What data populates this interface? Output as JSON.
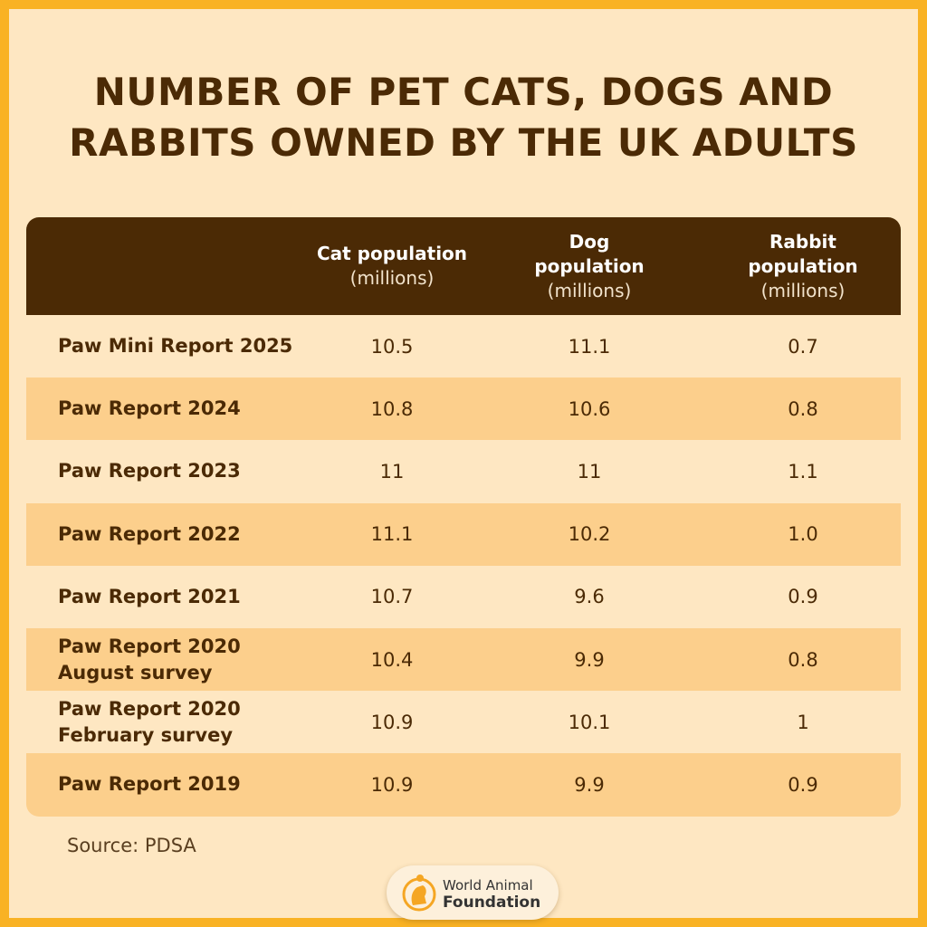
{
  "title": "NUMBER OF PET CATS, DOGS AND RABBITS OWNED BY THE UK ADULTS",
  "colors": {
    "border": "#F9B224",
    "background": "#FEE7C2",
    "header": "#4B2A05",
    "stripe": "#FCCF8C"
  },
  "chart_data": {
    "type": "table",
    "title": "NUMBER OF PET CATS, DOGS AND RABBITS OWNED BY THE UK ADULTS",
    "columns": [
      {
        "name": "Cat population",
        "unit": "(millions)"
      },
      {
        "name": "Dog population",
        "unit": "(millions)"
      },
      {
        "name": "Rabbit population",
        "unit": "(millions)"
      }
    ],
    "rows": [
      {
        "label": [
          "Paw Mini Report 2025"
        ],
        "values": [
          "10.5",
          "11.1",
          "0.7"
        ]
      },
      {
        "label": [
          "Paw Report 2024"
        ],
        "values": [
          "10.8",
          "10.6",
          "0.8"
        ]
      },
      {
        "label": [
          "Paw Report 2023"
        ],
        "values": [
          "11",
          "11",
          "1.1"
        ]
      },
      {
        "label": [
          "Paw Report 2022"
        ],
        "values": [
          "11.1",
          "10.2",
          "1.0"
        ]
      },
      {
        "label": [
          "Paw Report 2021"
        ],
        "values": [
          "10.7",
          "9.6",
          "0.9"
        ]
      },
      {
        "label": [
          "Paw Report 2020",
          "August survey"
        ],
        "values": [
          "10.4",
          "9.9",
          "0.8"
        ]
      },
      {
        "label": [
          "Paw Report 2020",
          "February survey"
        ],
        "values": [
          "10.9",
          "10.1",
          "1"
        ]
      },
      {
        "label": [
          "Paw Report 2019"
        ],
        "values": [
          "10.9",
          "9.9",
          "0.9"
        ]
      }
    ]
  },
  "source": "Source: PDSA",
  "logo": {
    "line1": "World Animal",
    "line2": "Foundation",
    "icon": "pet-silhouette-circle-icon"
  }
}
